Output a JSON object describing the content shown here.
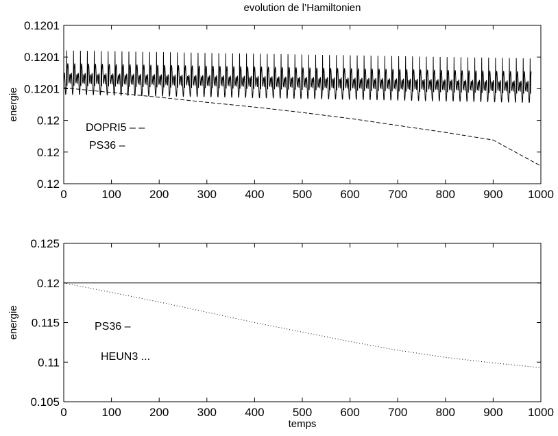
{
  "figure": {
    "title": "evolution de l’Hamiltonien"
  },
  "chart_data": [
    {
      "type": "line",
      "title": "evolution de l’Hamiltonien",
      "xlabel": "",
      "ylabel": "energie",
      "xlim": [
        0,
        1000
      ],
      "ylim": [
        0,
        5
      ],
      "x_ticks": [
        0,
        100,
        200,
        300,
        400,
        500,
        600,
        700,
        800,
        900,
        1000
      ],
      "x_tick_labels": [
        "0",
        "100",
        "200",
        "300",
        "400",
        "500",
        "600",
        "700",
        "800",
        "900",
        "1000"
      ],
      "y_ticks": [
        0,
        1,
        2,
        3,
        4,
        5
      ],
      "y_tick_labels": [
        "0.12",
        "0.12",
        "0.12",
        "0.1201",
        "0.1201",
        "0.1201"
      ],
      "grid": false,
      "annotations": [
        "DOPRI5 – –",
        "PS36 –"
      ],
      "series": [
        {
          "style": "dashed",
          "x": [
            0,
            100,
            200,
            300,
            400,
            500,
            600,
            700,
            800,
            900,
            1000
          ],
          "y": [
            3.03,
            2.88,
            2.73,
            2.57,
            2.42,
            2.25,
            2.06,
            1.84,
            1.62,
            1.38,
            0.56
          ]
        },
        {
          "style": "solid",
          "oscillation": {
            "x_start": 0,
            "x_end": 980,
            "period": 14.5,
            "mean_start": 3.16,
            "mean_end": 2.9,
            "upper_start": 4.4,
            "upper_end": 4.15,
            "lower_start": 2.75,
            "lower_end": 2.5
          }
        }
      ]
    },
    {
      "type": "line",
      "title": "",
      "xlabel": "temps",
      "ylabel": "energie",
      "xlim": [
        0,
        1000
      ],
      "ylim": [
        0.105,
        0.125
      ],
      "x_ticks": [
        0,
        100,
        200,
        300,
        400,
        500,
        600,
        700,
        800,
        900,
        1000
      ],
      "x_tick_labels": [
        "0",
        "100",
        "200",
        "300",
        "400",
        "500",
        "600",
        "700",
        "800",
        "900",
        "1000"
      ],
      "y_ticks": [
        0.105,
        0.11,
        0.115,
        0.12,
        0.125
      ],
      "y_tick_labels": [
        "0.105",
        "0.11",
        "0.115",
        "0.12",
        "0.125"
      ],
      "grid": false,
      "annotations": [
        "PS36 –",
        "HEUN3 ..."
      ],
      "series": [
        {
          "style": "solid",
          "x": [
            0,
            1000
          ],
          "y": [
            0.12,
            0.12
          ]
        },
        {
          "style": "dotted",
          "x": [
            0,
            100,
            200,
            300,
            400,
            500,
            600,
            700,
            800,
            900,
            1000
          ],
          "y": [
            0.12,
            0.1188,
            0.1176,
            0.1163,
            0.115,
            0.1138,
            0.1126,
            0.1115,
            0.1106,
            0.1099,
            0.1093
          ]
        }
      ]
    }
  ]
}
